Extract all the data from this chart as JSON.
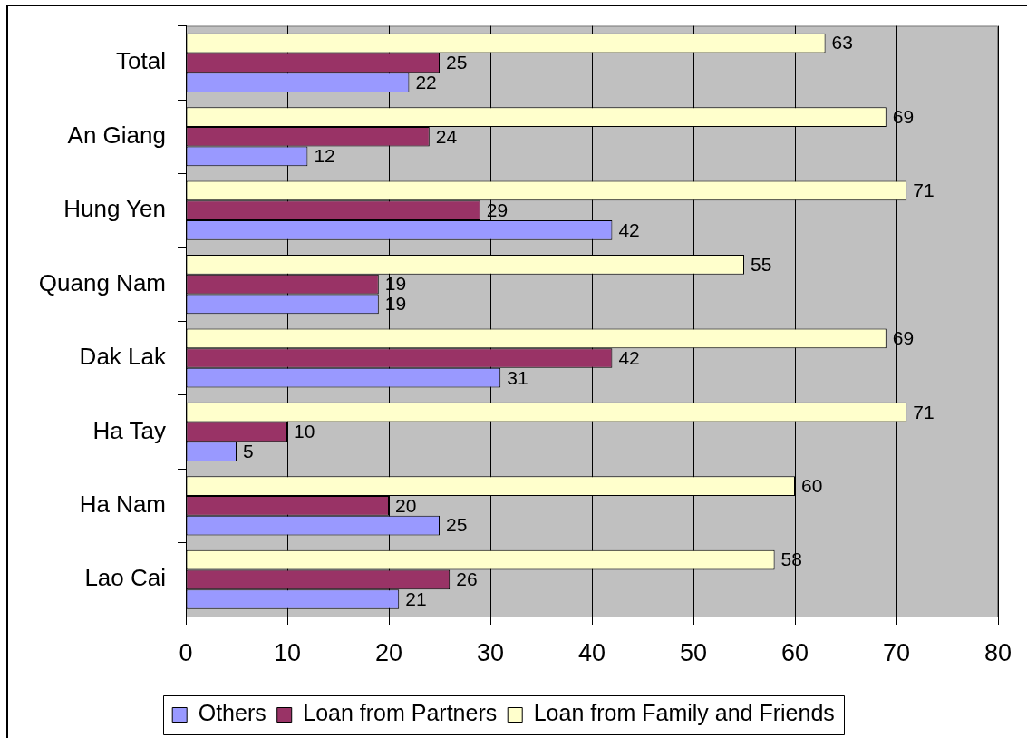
{
  "chart_data": {
    "type": "bar",
    "orientation": "horizontal",
    "categories": [
      "Total",
      "An Giang",
      "Hung Yen",
      "Quang Nam",
      "Dak Lak",
      "Ha Tay",
      "Ha Nam",
      "Lao Cai"
    ],
    "series": [
      {
        "name": "Others",
        "color": "#9999ff",
        "values": [
          22,
          12,
          42,
          19,
          31,
          5,
          25,
          21
        ]
      },
      {
        "name": "Loan from Partners",
        "color": "#993366",
        "values": [
          25,
          24,
          29,
          19,
          42,
          10,
          20,
          26
        ]
      },
      {
        "name": "Loan from Family and Friends",
        "color": "#ffffcc",
        "values": [
          63,
          69,
          71,
          55,
          69,
          71,
          60,
          58
        ]
      }
    ],
    "xlim": [
      0,
      80
    ],
    "xticks": [
      0,
      10,
      20,
      30,
      40,
      50,
      60,
      70,
      80
    ],
    "grid": "x",
    "legend": "bottom",
    "data_labels": true
  }
}
